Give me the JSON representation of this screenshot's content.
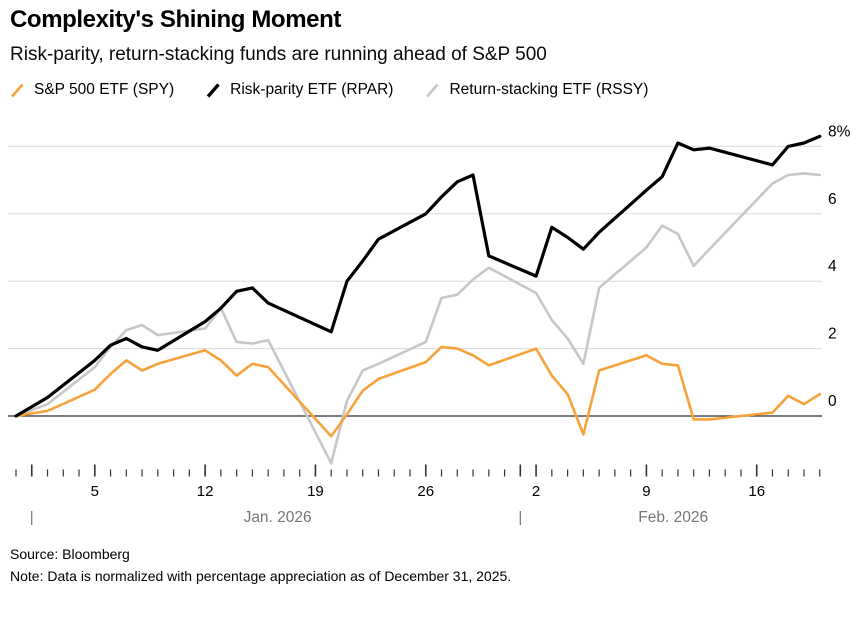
{
  "header": {
    "title": "Complexity's Shining Moment",
    "subtitle": "Risk-parity, return-stacking funds are running ahead of S&P 500"
  },
  "legend": [
    {
      "label": "S&P 500 ETF (SPY)",
      "color": "#f7a23b",
      "icon": "slash-icon",
      "stroke_width": 2.6
    },
    {
      "label": "Risk-parity ETF (RPAR)",
      "color": "#000000",
      "icon": "slash-icon",
      "stroke_width": 3.4
    },
    {
      "label": "Return-stacking ETF (RSSY)",
      "color": "#c7c7c7",
      "icon": "slash-icon",
      "stroke_width": 2.6
    }
  ],
  "chart_data": {
    "type": "line",
    "title": "Complexity's Shining Moment",
    "x_unit": "calendar day offset from Dec 31, 2025",
    "grid": "horizontal-on",
    "legend_position": "top",
    "trading_days": [
      0,
      2,
      5,
      6,
      7,
      8,
      9,
      12,
      13,
      14,
      15,
      16,
      20,
      21,
      22,
      23,
      26,
      27,
      28,
      29,
      30,
      33,
      34,
      35,
      36,
      37,
      40,
      41,
      42,
      43,
      44,
      48,
      49,
      50,
      51
    ],
    "series": [
      {
        "name": "S&P 500 ETF (SPY)",
        "color": "#f7a23b",
        "width": 2.6,
        "values": [
          0.0,
          0.15,
          0.78,
          1.25,
          1.65,
          1.35,
          1.55,
          1.95,
          1.65,
          1.2,
          1.55,
          1.45,
          -0.6,
          0.05,
          0.75,
          1.1,
          1.6,
          2.05,
          2.0,
          1.8,
          1.5,
          2.0,
          1.2,
          0.65,
          -0.55,
          1.35,
          1.8,
          1.55,
          1.5,
          -0.1,
          -0.1,
          0.1,
          0.6,
          0.35,
          0.65
        ]
      },
      {
        "name": "Risk-parity ETF (RPAR)",
        "color": "#000000",
        "width": 3.2,
        "values": [
          0.0,
          0.55,
          1.65,
          2.1,
          2.3,
          2.05,
          1.95,
          2.8,
          3.2,
          3.7,
          3.8,
          3.35,
          2.5,
          4.0,
          4.6,
          5.25,
          6.0,
          6.5,
          6.95,
          7.15,
          4.75,
          4.15,
          5.6,
          5.3,
          4.95,
          5.45,
          6.7,
          7.1,
          8.1,
          7.9,
          7.95,
          7.45,
          8.0,
          8.1,
          8.3
        ]
      },
      {
        "name": "Return-stacking ETF (RSSY)",
        "color": "#c7c7c7",
        "width": 2.6,
        "values": [
          0.0,
          0.35,
          1.45,
          2.05,
          2.55,
          2.7,
          2.4,
          2.6,
          3.2,
          2.2,
          2.15,
          2.25,
          -1.4,
          0.45,
          1.35,
          1.55,
          2.2,
          3.5,
          3.6,
          4.05,
          4.4,
          3.65,
          2.85,
          2.3,
          1.55,
          3.8,
          5.0,
          5.65,
          5.4,
          4.45,
          4.95,
          6.9,
          7.15,
          7.2,
          7.15
        ]
      }
    ],
    "y_axis": {
      "side": "right",
      "ticks": [
        {
          "value": 0,
          "label": "0"
        },
        {
          "value": 2,
          "label": "2"
        },
        {
          "value": 4,
          "label": "4"
        },
        {
          "value": 6,
          "label": "6"
        },
        {
          "value": 8,
          "label": "8%"
        }
      ],
      "zero_line_color": "#2b2b2b",
      "grid_color": "#dcdcdc",
      "ylim": [
        -1.7,
        8.6
      ]
    },
    "x_axis": {
      "tick_every": "calendar day",
      "long_tick_days": [
        1,
        5,
        12,
        19,
        26,
        32,
        33,
        40,
        47
      ],
      "day_range": [
        0,
        51
      ],
      "day_labels": [
        {
          "day": 5,
          "label": "5"
        },
        {
          "day": 12,
          "label": "12"
        },
        {
          "day": 19,
          "label": "19"
        },
        {
          "day": 26,
          "label": "26"
        },
        {
          "day": 33,
          "label": "2"
        },
        {
          "day": 40,
          "label": "9"
        },
        {
          "day": 47,
          "label": "16"
        }
      ],
      "months": [
        {
          "label": "Jan. 2026",
          "separator_day": 1,
          "center_day": 16.6
        },
        {
          "label": "Feb. 2026",
          "separator_day": 32,
          "center_day": 41.7
        }
      ],
      "tick_color": "#333333",
      "day_label_color": "#000000",
      "month_label_color": "#757575"
    }
  },
  "footer": {
    "source": "Source: Bloomberg",
    "note": "Note: Data is normalized with percentage appreciation as of December 31, 2025."
  }
}
